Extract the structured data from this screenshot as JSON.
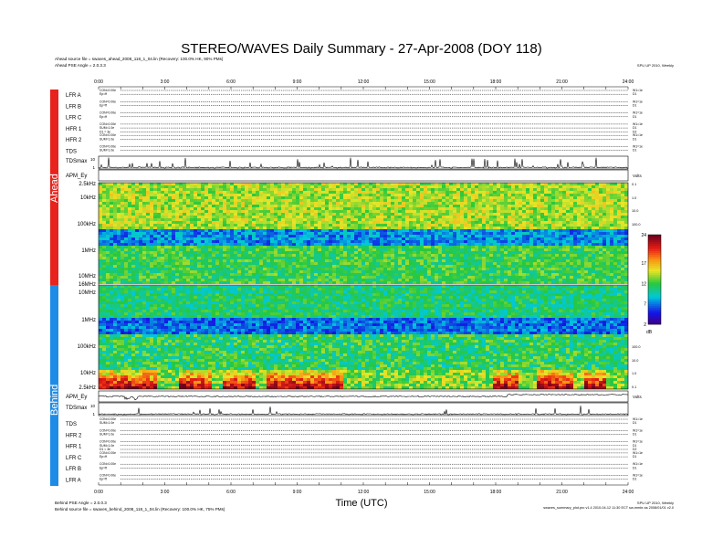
{
  "title": "STEREO/WAVES Daily Summary - 27-Apr-2008 (DOY 118)",
  "header": {
    "ahead_file": "Ahead source file = swaves_ahead_2008_118_1_04.lin (Recovery: 100.0% HK, 90% PMs)",
    "ahead_angle": "Ahead PSE Angle = 2.0.3.3",
    "credit_top": "SPU UP 2010, Weekly"
  },
  "footer": {
    "behind_angle": "Behind PSE Angle = 2.0.0.3",
    "behind_file": "Behind source file = swaves_behind_2008_118_1_04.lin (Recovery: 100.0% HK, 75% PMs)",
    "credit_bottom": "SPU UP 2010, Weekly",
    "program_note": "swaves_summary_plot.pro v1.4 2010-04-12 11:30 ECT sw-mmbr-ss 2008/01/01 v2.0"
  },
  "side_labels": {
    "ahead": "Ahead",
    "behind": "Behind"
  },
  "colors": {
    "ahead": "#e8221c",
    "behind": "#1e8ce6"
  },
  "chart_data": {
    "type": "heatmap",
    "xlabel": "Time (UTC)",
    "x_ticks": [
      "0:00",
      "3:00",
      "6:00",
      "9:00",
      "12:00",
      "15:00",
      "18:00",
      "21:00",
      "24:00"
    ],
    "x_range_hours": [
      0,
      24
    ],
    "ahead_rows": [
      {
        "label": "LFR A",
        "lines": [
          "CON=0.00e",
          "Ep=ff"
        ],
        "right": [
          "W1=1e",
          "D1"
        ]
      },
      {
        "label": "LFR B",
        "lines": [
          "CON=0.00e",
          "Ep=ff"
        ],
        "right": [
          "W1=1e",
          "D1"
        ]
      },
      {
        "label": "LFR C",
        "lines": [
          "CON=0.00e",
          "Ep=ff"
        ],
        "right": [
          "W1=1e",
          "D1"
        ]
      },
      {
        "label": "HFR 1",
        "lines": [
          "CON=0.00e",
          "SUM=1.0e",
          "D1 = 3e"
        ],
        "right": [
          "W1=1e",
          "D1",
          "D2"
        ]
      },
      {
        "label": "HFR 2",
        "lines": [
          "CON=0.00e",
          "SUM=1.0e"
        ],
        "right": [
          "W1=1e",
          "D1"
        ]
      },
      {
        "label": "TDS",
        "lines": [
          "CON=0.00e",
          "SUM=1.0e"
        ],
        "right": [
          "W1=1e",
          "D1"
        ]
      }
    ],
    "behind_rows": [
      {
        "label": "TDS",
        "lines": [
          "CON=0.00e",
          "SUM=1.0e"
        ],
        "right": [
          "W1=1e",
          "D1"
        ]
      },
      {
        "label": "HFR 2",
        "lines": [
          "CON=0.00e",
          "SUM=1.0e"
        ],
        "right": [
          "W1=1e",
          "D1"
        ]
      },
      {
        "label": "HFR 1",
        "lines": [
          "CON=0.00e",
          "SUM=1.0e",
          "D1 = 3e"
        ],
        "right": [
          "W1=1e",
          "D1",
          "D2"
        ]
      },
      {
        "label": "LFR C",
        "lines": [
          "CON=0.00e",
          "Ep=ff"
        ],
        "right": [
          "W1=1e",
          "D1"
        ]
      },
      {
        "label": "LFR B",
        "lines": [
          "CON=0.00e",
          "Ep=ff"
        ],
        "right": [
          "W1=1e",
          "D1"
        ]
      },
      {
        "label": "LFR A",
        "lines": [
          "CON=0.00e",
          "Ep=ff"
        ],
        "right": [
          "W1=1e",
          "D1"
        ]
      }
    ],
    "ahead_tdsmax": {
      "label": "TDSmax",
      "ticks": [
        "10",
        "1"
      ]
    },
    "ahead_apm": {
      "label": "APM_Ey",
      "right": "Volts"
    },
    "behind_apm": {
      "label": "APM_Ey",
      "right": "Volts"
    },
    "behind_tdsmax": {
      "label": "TDSmax",
      "ticks": [
        "10",
        "1"
      ]
    },
    "ahead_freq_labels": [
      "2.5kHz",
      "10kHz",
      "100kHz",
      "1MHz",
      "10MHz",
      "16MHz"
    ],
    "behind_freq_labels": [
      "10MHz",
      "1MHz",
      "100kHz",
      "10kHz",
      "2.5kHz"
    ],
    "right_freq_labels_ahead": [
      "0.1",
      "1.0",
      "10.0",
      "100.0"
    ],
    "right_freq_labels_behind": [
      "100.0",
      "10.0",
      "1.0",
      "0.1"
    ],
    "colorbar": {
      "unit": "dB",
      "ticks": [
        "24",
        "17",
        "12",
        "7",
        "2"
      ],
      "range": [
        2,
        24
      ]
    },
    "features": {
      "behind_enhanced_intervals_hours": [
        [
          0.0,
          2.5
        ],
        [
          3.5,
          5.0
        ],
        [
          5.5,
          7.0
        ],
        [
          7.5,
          11.0
        ],
        [
          17.8,
          19.0
        ],
        [
          19.8,
          21.5
        ],
        [
          22.0,
          23.0
        ]
      ],
      "ahead_enhanced_intervals_hours": [
        [
          0.0,
          24.0
        ]
      ],
      "band_gap_rows": [
        "~600kHz-1MHz"
      ]
    }
  }
}
